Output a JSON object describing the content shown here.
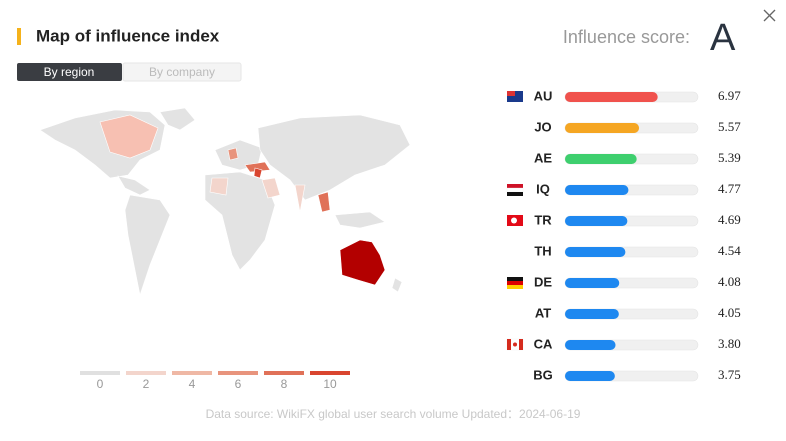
{
  "header": {
    "title": "Map of influence index",
    "score_label": "Influence score:",
    "score": "A"
  },
  "tabs": [
    "By region",
    "By company"
  ],
  "chart_data": {
    "type": "bar",
    "orientation": "horizontal",
    "categories": [
      "AU",
      "JO",
      "AE",
      "IQ",
      "TR",
      "TH",
      "DE",
      "AT",
      "CA",
      "BG"
    ],
    "values": [
      6.97,
      5.57,
      5.39,
      4.77,
      4.69,
      4.54,
      4.08,
      4.05,
      3.8,
      3.75
    ],
    "value_labels": [
      "6.97",
      "5.57",
      "5.39",
      "4.77",
      "4.69",
      "4.54",
      "4.08",
      "4.05",
      "3.80",
      "3.75"
    ],
    "colors": [
      "#f0524d",
      "#f5a623",
      "#3ecf6e",
      "#1e88f0",
      "#1e88f0",
      "#1e88f0",
      "#1e88f0",
      "#1e88f0",
      "#1e88f0",
      "#1e88f0"
    ],
    "xlim": [
      0,
      10
    ]
  },
  "map_legend": {
    "ticks": [
      0,
      2,
      4,
      6,
      8,
      10
    ],
    "colors": [
      "#e0e0e0",
      "#f3d5cc",
      "#efb8a5",
      "#e8947d",
      "#e07158",
      "#d9452f"
    ]
  },
  "footer": {
    "source": "Data source: WikiFX global user search volume Updated：2024-06-19"
  }
}
